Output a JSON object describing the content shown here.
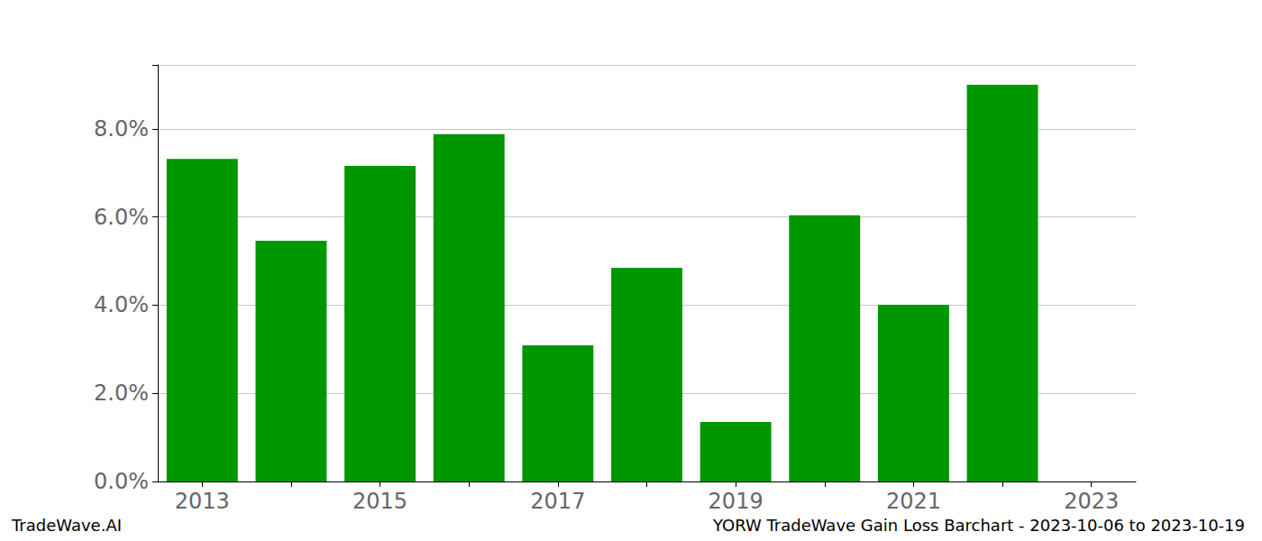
{
  "chart_data": {
    "type": "bar",
    "title": "YORW TradeWave Gain Loss Barchart - 2023-10-06 to 2023-10-19",
    "annotations": [
      "TradeWave.AI"
    ],
    "categories": [
      "2013",
      null,
      "2015",
      null,
      "2017",
      null,
      "2019",
      null,
      "2021",
      null,
      "2023"
    ],
    "values": [
      7.32,
      5.46,
      7.16,
      7.88,
      3.09,
      4.85,
      1.35,
      6.04,
      4.01,
      9.0,
      null
    ],
    "color": "#009600",
    "ylim": [
      0,
      9.45
    ],
    "yticks": [
      {
        "value": 0,
        "label": "0.0%"
      },
      {
        "value": 2,
        "label": "2.0%"
      },
      {
        "value": 4,
        "label": "4.0%"
      },
      {
        "value": 6,
        "label": "6.0%"
      },
      {
        "value": 8,
        "label": "8.0%"
      }
    ],
    "grid": true
  }
}
